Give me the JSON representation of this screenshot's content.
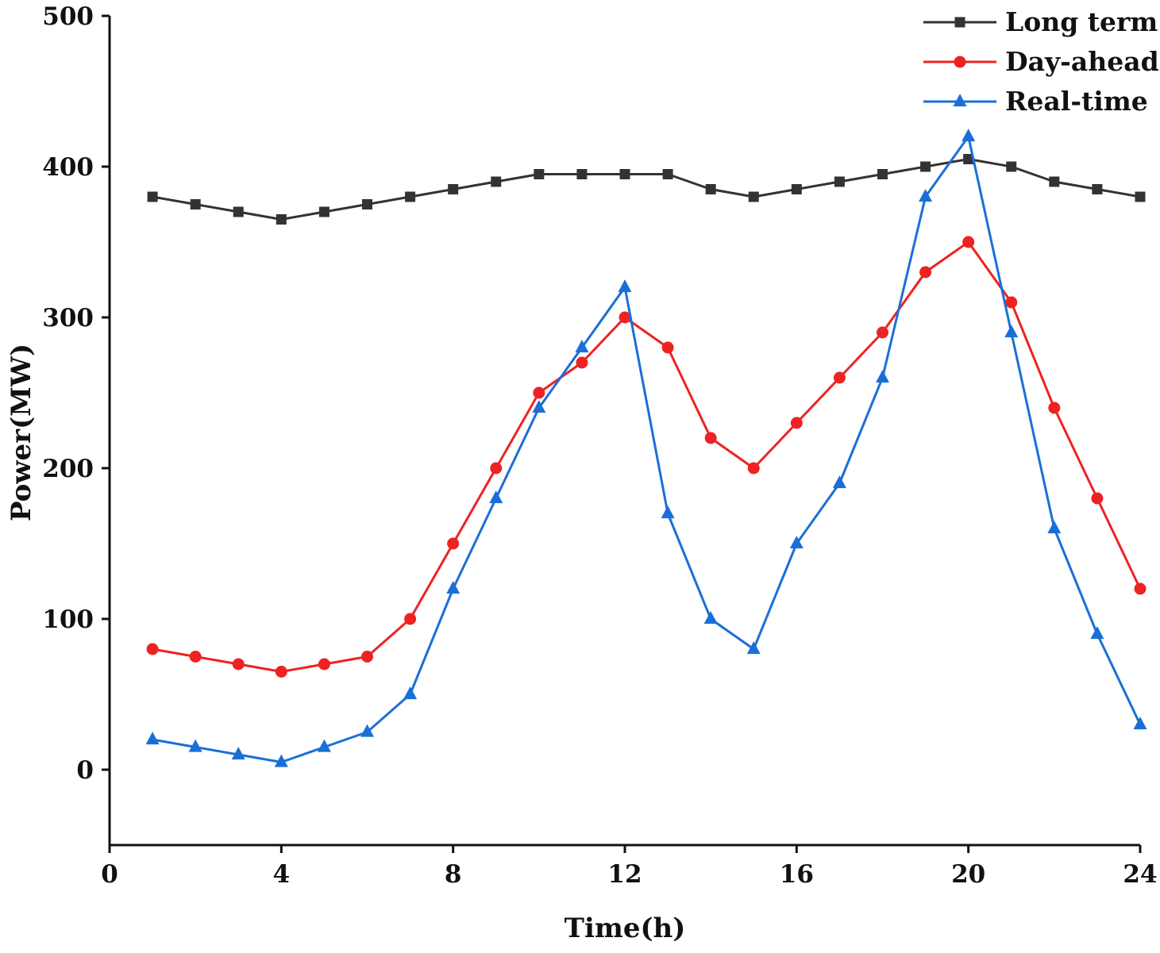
{
  "chart_data": {
    "type": "line",
    "title": "",
    "xlabel": "Time(h)",
    "ylabel": "Power(MW)",
    "xlim": [
      0,
      24
    ],
    "ylim": [
      -50,
      500
    ],
    "xticks": [
      0,
      4,
      8,
      12,
      16,
      20,
      24
    ],
    "yticks": [
      0,
      100,
      200,
      300,
      400,
      500
    ],
    "grid": false,
    "legend_position": "top-right",
    "x": [
      1,
      2,
      3,
      4,
      5,
      6,
      7,
      8,
      9,
      10,
      11,
      12,
      13,
      14,
      15,
      16,
      17,
      18,
      19,
      20,
      21,
      22,
      23,
      24
    ],
    "series": [
      {
        "name": "Long term",
        "color": "#333333",
        "marker": "square",
        "values": [
          380,
          375,
          370,
          365,
          370,
          375,
          380,
          385,
          390,
          395,
          395,
          395,
          395,
          385,
          380,
          385,
          390,
          395,
          400,
          405,
          400,
          390,
          385,
          380
        ]
      },
      {
        "name": "Day-ahead",
        "color": "#ee2222",
        "marker": "circle",
        "values": [
          80,
          75,
          70,
          65,
          70,
          75,
          100,
          150,
          200,
          250,
          270,
          300,
          280,
          220,
          200,
          230,
          260,
          290,
          330,
          350,
          310,
          240,
          180,
          120
        ]
      },
      {
        "name": "Real-time",
        "color": "#1a6fd6",
        "marker": "triangle",
        "values": [
          20,
          15,
          10,
          5,
          15,
          25,
          50,
          120,
          180,
          240,
          280,
          320,
          170,
          100,
          80,
          150,
          190,
          260,
          380,
          420,
          290,
          160,
          90,
          30
        ]
      }
    ]
  }
}
